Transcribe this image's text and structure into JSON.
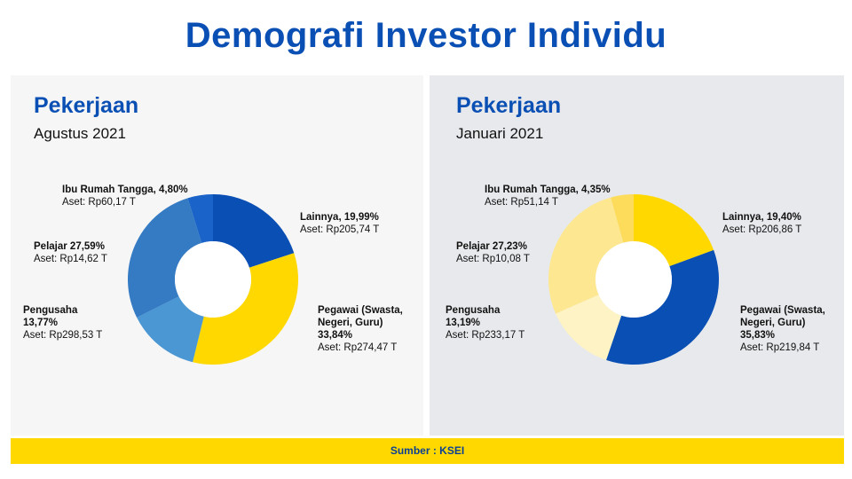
{
  "title": "Demografi Investor Individu",
  "footer": "Sumber : KSEI",
  "chart_data": [
    {
      "type": "pie",
      "title": "Pekerjaan",
      "subtitle": "Agustus 2021",
      "slices": [
        {
          "name": "Lainnya, 19,99%",
          "value": 19.99,
          "asset": "Aset: Rp205,74 T",
          "color": "#0a4fb4"
        },
        {
          "name": "Pegawai (Swasta, Negeri, Guru) 33,84%",
          "value": 33.84,
          "asset": "Aset: Rp274,47 T",
          "color": "#ffd800"
        },
        {
          "name": "Pengusaha 13,77%",
          "value": 13.77,
          "asset": "Aset: Rp298,53 T",
          "color": "#4a97d4"
        },
        {
          "name": "Pelajar 27,59%",
          "value": 27.59,
          "asset": "Aset: Rp14,62 T",
          "color": "#347bc4"
        },
        {
          "name": "Ibu Rumah Tangga, 4,80%",
          "value": 4.8,
          "asset": "Aset: Rp60,17 T",
          "color": "#1a63c8"
        }
      ]
    },
    {
      "type": "pie",
      "title": "Pekerjaan",
      "subtitle": "Januari 2021",
      "slices": [
        {
          "name": "Lainnya, 19,40%",
          "value": 19.4,
          "asset": "Aset: Rp206,86 T",
          "color": "#ffd800"
        },
        {
          "name": "Pegawai (Swasta, Negeri, Guru) 35,83%",
          "value": 35.83,
          "asset": "Aset: Rp219,84 T",
          "color": "#0a4fb4"
        },
        {
          "name": "Pengusaha 13,19%",
          "value": 13.19,
          "asset": "Aset: Rp233,17 T",
          "color": "#fdf3c4"
        },
        {
          "name": "Pelajar 27,23%",
          "value": 27.23,
          "asset": "Aset: Rp10,08 T",
          "color": "#fde891"
        },
        {
          "name": "Ibu Rumah Tangga, 4,35%",
          "value": 4.35,
          "asset": "Aset: Rp51,14 T",
          "color": "#fddc5c"
        }
      ]
    }
  ]
}
